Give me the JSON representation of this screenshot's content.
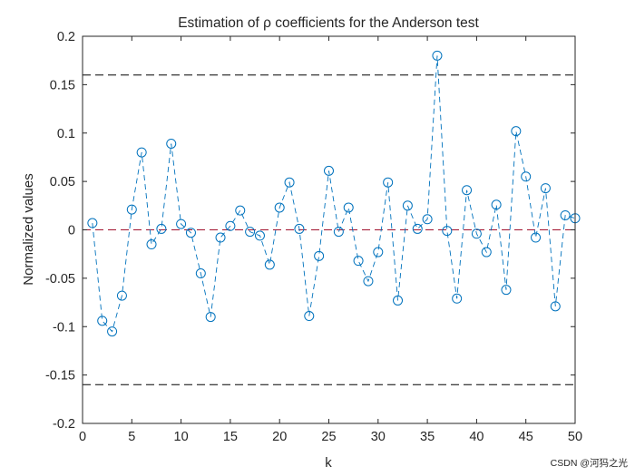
{
  "chart_data": {
    "type": "line",
    "title": "Estimation of ρ coefficients for the Anderson test",
    "xlabel": "k",
    "ylabel": "Normalized values",
    "xlim": [
      0,
      50
    ],
    "ylim": [
      -0.2,
      0.2
    ],
    "x_ticks": [
      0,
      5,
      10,
      15,
      20,
      25,
      30,
      35,
      40,
      45,
      50
    ],
    "y_ticks": [
      -0.2,
      -0.15,
      -0.1,
      -0.05,
      0,
      0.05,
      0.1,
      0.15,
      0.2
    ],
    "x_tick_labels": [
      "0",
      "5",
      "10",
      "15",
      "20",
      "25",
      "30",
      "35",
      "40",
      "45",
      "50"
    ],
    "y_tick_labels": [
      "-0.2",
      "-0.15",
      "-0.1",
      "-0.05",
      "0",
      "0.05",
      "0.1",
      "0.15",
      "0.2"
    ],
    "series": [
      {
        "name": "rho",
        "style": "dashed line with circle markers",
        "color": "#0072BD",
        "x": [
          1,
          2,
          3,
          4,
          5,
          6,
          7,
          8,
          9,
          10,
          11,
          12,
          13,
          14,
          15,
          16,
          17,
          18,
          19,
          20,
          21,
          22,
          23,
          24,
          25,
          26,
          27,
          28,
          29,
          30,
          31,
          32,
          33,
          34,
          35,
          36,
          37,
          38,
          39,
          40,
          41,
          42,
          43,
          44,
          45,
          46,
          47,
          48,
          49,
          50
        ],
        "values": [
          0.007,
          -0.094,
          -0.105,
          -0.068,
          0.021,
          0.08,
          -0.015,
          0.001,
          0.089,
          0.006,
          -0.003,
          -0.045,
          -0.09,
          -0.008,
          0.004,
          0.02,
          -0.002,
          -0.006,
          -0.036,
          0.023,
          0.049,
          0.001,
          -0.089,
          -0.027,
          0.061,
          -0.002,
          0.023,
          -0.032,
          -0.053,
          -0.023,
          0.049,
          -0.073,
          0.025,
          0.001,
          0.011,
          0.18,
          -0.001,
          -0.071,
          0.041,
          -0.004,
          -0.023,
          0.026,
          -0.062,
          0.102,
          0.055,
          -0.008,
          0.043,
          -0.079,
          0.015,
          0.012
        ]
      }
    ],
    "reference_lines": [
      {
        "name": "upper-threshold",
        "y": 0.16,
        "color": "#000000",
        "style": "dashed"
      },
      {
        "name": "lower-threshold",
        "y": -0.16,
        "color": "#000000",
        "style": "dashed"
      },
      {
        "name": "zero-line",
        "y": 0,
        "color": "#A2142F",
        "style": "dashed"
      }
    ]
  },
  "watermark": "CSDN @河犸之光"
}
